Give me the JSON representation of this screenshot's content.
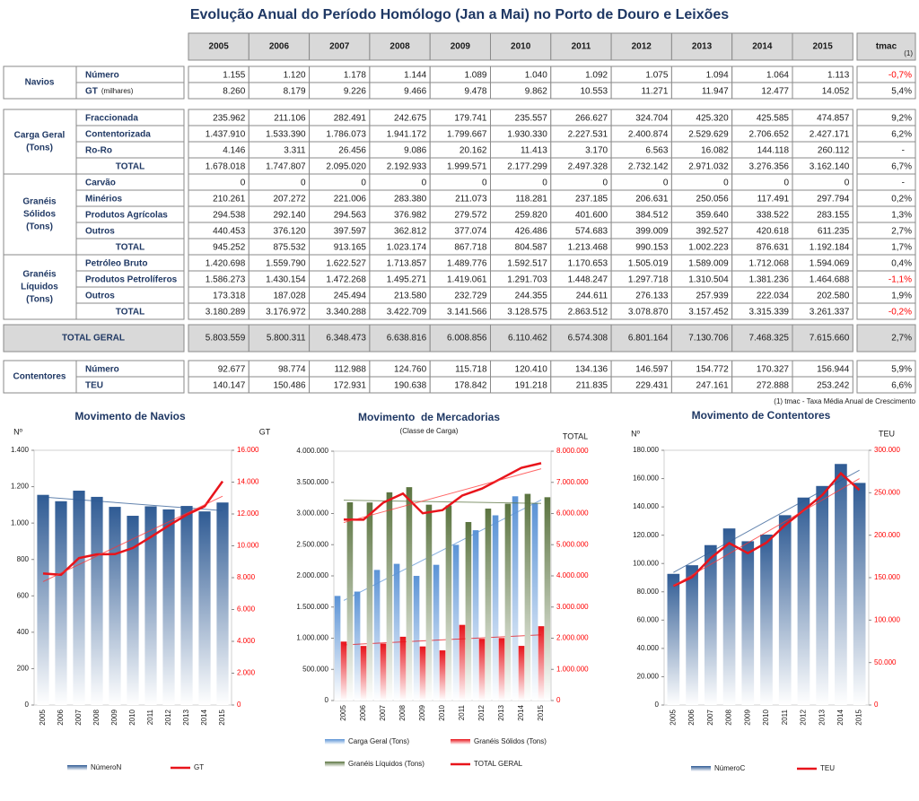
{
  "title": "Evolução Anual do Período Homólogo (Jan a Mai) no Porto de Douro e Leixões",
  "table": {
    "header": [
      "2005",
      "2006",
      "2007",
      "2008",
      "2009",
      "2010",
      "2011",
      "2012",
      "2013",
      "2014",
      "2015",
      "tmac"
    ],
    "header_note": "(1)",
    "groups": [
      {
        "label_lines": [
          "Navios"
        ],
        "rows": [
          {
            "label": "Número",
            "cells": [
              "1.155",
              "1.120",
              "1.178",
              "1.144",
              "1.089",
              "1.040",
              "1.092",
              "1.075",
              "1.094",
              "1.064",
              "1.113",
              "-0,7%"
            ]
          },
          {
            "label": "GT",
            "note": "(milhares)",
            "cells": [
              "8.260",
              "8.179",
              "9.226",
              "9.466",
              "9.478",
              "9.862",
              "10.553",
              "11.271",
              "11.947",
              "12.477",
              "14.052",
              "5,4%"
            ]
          }
        ]
      },
      {
        "label_lines": [
          "Carga Geral",
          "(Tons)"
        ],
        "rows": [
          {
            "label": "Fraccionada",
            "cells": [
              "235.962",
              "211.106",
              "282.491",
              "242.675",
              "179.741",
              "235.557",
              "266.627",
              "324.704",
              "425.320",
              "425.585",
              "474.857",
              "9,2%"
            ]
          },
          {
            "label": "Contentorizada",
            "cells": [
              "1.437.910",
              "1.533.390",
              "1.786.073",
              "1.941.172",
              "1.799.667",
              "1.930.330",
              "2.227.531",
              "2.400.874",
              "2.529.629",
              "2.706.652",
              "2.427.171",
              "6,2%"
            ]
          },
          {
            "label": "Ro-Ro",
            "cells": [
              "4.146",
              "3.311",
              "26.456",
              "9.086",
              "20.162",
              "11.413",
              "3.170",
              "6.563",
              "16.082",
              "144.118",
              "260.112",
              "-"
            ]
          },
          {
            "label": "TOTAL",
            "cells": [
              "1.678.018",
              "1.747.807",
              "2.095.020",
              "2.192.933",
              "1.999.571",
              "2.177.299",
              "2.497.328",
              "2.732.142",
              "2.971.032",
              "3.276.356",
              "3.162.140",
              "6,7%"
            ]
          }
        ]
      },
      {
        "label_lines": [
          "Granéis",
          "Sólidos",
          "(Tons)"
        ],
        "rows": [
          {
            "label": "Carvão",
            "cells": [
              "0",
              "0",
              "0",
              "0",
              "0",
              "0",
              "0",
              "0",
              "0",
              "0",
              "0",
              "-"
            ]
          },
          {
            "label": "Minérios",
            "cells": [
              "210.261",
              "207.272",
              "221.006",
              "283.380",
              "211.073",
              "118.281",
              "237.185",
              "206.631",
              "250.056",
              "117.491",
              "297.794",
              "0,2%"
            ]
          },
          {
            "label": "Produtos Agrícolas",
            "cells": [
              "294.538",
              "292.140",
              "294.563",
              "376.982",
              "279.572",
              "259.820",
              "401.600",
              "384.512",
              "359.640",
              "338.522",
              "283.155",
              "1,3%"
            ]
          },
          {
            "label": "Outros",
            "cells": [
              "440.453",
              "376.120",
              "397.597",
              "362.812",
              "377.074",
              "426.486",
              "574.683",
              "399.009",
              "392.527",
              "420.618",
              "611.235",
              "2,7%"
            ]
          },
          {
            "label": "TOTAL",
            "cells": [
              "945.252",
              "875.532",
              "913.165",
              "1.023.174",
              "867.718",
              "804.587",
              "1.213.468",
              "990.153",
              "1.002.223",
              "876.631",
              "1.192.184",
              "1,7%"
            ]
          }
        ]
      },
      {
        "label_lines": [
          "Granéis",
          "Líquidos",
          "(Tons)"
        ],
        "rows": [
          {
            "label": "Petróleo Bruto",
            "cells": [
              "1.420.698",
              "1.559.790",
              "1.622.527",
              "1.713.857",
              "1.489.776",
              "1.592.517",
              "1.170.653",
              "1.505.019",
              "1.589.009",
              "1.712.068",
              "1.594.069",
              "0,4%"
            ]
          },
          {
            "label": "Produtos Petrolíferos",
            "cells": [
              "1.586.273",
              "1.430.154",
              "1.472.268",
              "1.495.271",
              "1.419.061",
              "1.291.703",
              "1.448.247",
              "1.297.718",
              "1.310.504",
              "1.381.236",
              "1.464.688",
              "-1,1%"
            ]
          },
          {
            "label": "Outros",
            "cells": [
              "173.318",
              "187.028",
              "245.494",
              "213.580",
              "232.729",
              "244.355",
              "244.611",
              "276.133",
              "257.939",
              "222.034",
              "202.580",
              "1,9%"
            ]
          },
          {
            "label": "TOTAL",
            "cells": [
              "3.180.289",
              "3.176.972",
              "3.340.288",
              "3.422.709",
              "3.141.566",
              "3.128.575",
              "2.863.512",
              "3.078.870",
              "3.157.452",
              "3.315.339",
              "3.261.337",
              "-0,2%"
            ]
          }
        ]
      },
      {
        "label_lines": [
          "Contentores"
        ],
        "rows": [
          {
            "label": "Número",
            "cells": [
              "92.677",
              "98.774",
              "112.988",
              "124.760",
              "115.718",
              "120.410",
              "134.136",
              "146.597",
              "154.772",
              "170.327",
              "156.944",
              "5,9%"
            ]
          },
          {
            "label": "TEU",
            "cells": [
              "140.147",
              "150.486",
              "172.931",
              "190.638",
              "178.842",
              "191.218",
              "211.835",
              "229.431",
              "247.161",
              "272.888",
              "253.242",
              "6,6%"
            ]
          }
        ]
      }
    ],
    "total": {
      "label": "TOTAL GERAL",
      "cells": [
        "5.803.559",
        "5.800.311",
        "6.348.473",
        "6.638.816",
        "6.008.856",
        "6.110.462",
        "6.574.308",
        "6.801.164",
        "7.130.706",
        "7.468.325",
        "7.615.660",
        "2,7%"
      ]
    },
    "footnote": "(1) tmac - Taxa Média Anual de Crescimento"
  },
  "chart_data": [
    {
      "type": "combo",
      "title": "Movimento de Navios",
      "y_label": "Nº",
      "y2_label": "GT",
      "y2_color": "#ff0000",
      "trendlines": true,
      "categories": [
        "2005",
        "2006",
        "2007",
        "2008",
        "2009",
        "2010",
        "2011",
        "2012",
        "2013",
        "2014",
        "2015"
      ],
      "series": [
        {
          "name": "NúmeroN",
          "type": "bar",
          "color": "#2f5b94",
          "values": [
            1155,
            1120,
            1178,
            1144,
            1089,
            1040,
            1092,
            1075,
            1094,
            1064,
            1113
          ]
        },
        {
          "name": "GT",
          "type": "line",
          "axis": "y2",
          "color": "#e8141b",
          "values": [
            8260,
            8179,
            9226,
            9466,
            9478,
            9862,
            10553,
            11271,
            11947,
            12477,
            14052
          ]
        }
      ],
      "ylim": [
        0,
        1400
      ],
      "yticks": [
        0,
        200,
        400,
        600,
        800,
        {
          "value": 1000,
          "label": "1.000"
        },
        {
          "value": 1200,
          "label": "1.200"
        },
        {
          "value": 1400,
          "label": "1.400"
        }
      ],
      "y2lim": [
        0,
        16000
      ],
      "y2ticks": [
        0,
        {
          "value": 2000,
          "label": "2.000"
        },
        {
          "value": 4000,
          "label": "4.000"
        },
        {
          "value": 6000,
          "label": "6.000"
        },
        {
          "value": 8000,
          "label": "8.000"
        },
        {
          "value": 10000,
          "label": "10.000"
        },
        {
          "value": 12000,
          "label": "12.000"
        },
        {
          "value": 14000,
          "label": "14.000"
        },
        {
          "value": 16000,
          "label": "16.000"
        }
      ]
    },
    {
      "type": "combo",
      "title": "Movimento  de Mercadorias",
      "subtitle": "(Classe de Carga)",
      "y2_label": "TOTAL",
      "y2_color": "#ff0000",
      "trendlines": true,
      "categories": [
        "2005",
        "2006",
        "2007",
        "2008",
        "2009",
        "2010",
        "2011",
        "2012",
        "2013",
        "2014",
        "2015"
      ],
      "series": [
        {
          "name": "Carga Geral (Tons)",
          "type": "bar",
          "color": "#5b93d6",
          "values": [
            1678018,
            1747807,
            2095020,
            2192933,
            1999571,
            2177299,
            2497328,
            2732142,
            2971032,
            3276356,
            3162140
          ]
        },
        {
          "name": "Granéis Sólidos (Tons)",
          "type": "bar",
          "color": "#e8141b",
          "values": [
            945252,
            875532,
            913165,
            1023174,
            867718,
            804587,
            1213468,
            990153,
            1002223,
            876631,
            1192184
          ]
        },
        {
          "name": "Granéis Líquidos (Tons)",
          "type": "bar",
          "color": "#5b7440",
          "values": [
            3180289,
            3176972,
            3340288,
            3422709,
            3141566,
            3128575,
            2863512,
            3078870,
            3157452,
            3315339,
            3261337
          ]
        },
        {
          "name": "TOTAL GERAL",
          "type": "line",
          "axis": "y2",
          "color": "#e8141b",
          "values": [
            5803559,
            5800311,
            6348473,
            6638816,
            6008856,
            6110462,
            6574308,
            6801164,
            7130706,
            7468325,
            7615660
          ]
        }
      ],
      "ylim": [
        0,
        4000000
      ],
      "yticks": [
        0,
        {
          "value": 500000,
          "label": "500.000"
        },
        {
          "value": 1000000,
          "label": "1.000.000"
        },
        {
          "value": 1500000,
          "label": "1.500.000"
        },
        {
          "value": 2000000,
          "label": "2.000.000"
        },
        {
          "value": 2500000,
          "label": "2.500.000"
        },
        {
          "value": 3000000,
          "label": "3.000.000"
        },
        {
          "value": 3500000,
          "label": "3.500.000"
        },
        {
          "value": 4000000,
          "label": "4.000.000"
        }
      ],
      "y2lim": [
        0,
        8000000
      ],
      "y2ticks": [
        0,
        {
          "value": 1000000,
          "label": "1.000.000"
        },
        {
          "value": 2000000,
          "label": "2.000.000"
        },
        {
          "value": 3000000,
          "label": "3.000.000"
        },
        {
          "value": 4000000,
          "label": "4.000.000"
        },
        {
          "value": 5000000,
          "label": "5.000.000"
        },
        {
          "value": 6000000,
          "label": "6.000.000"
        },
        {
          "value": 7000000,
          "label": "7.000.000"
        },
        {
          "value": 8000000,
          "label": "8.000.000"
        }
      ]
    },
    {
      "type": "combo",
      "title": "Movimento de Contentores",
      "y_label": "Nº",
      "y2_label": "TEU",
      "y2_color": "#ff0000",
      "trendlines": true,
      "categories": [
        "2005",
        "2006",
        "2007",
        "2008",
        "2009",
        "2010",
        "2011",
        "2012",
        "2013",
        "2014",
        "2015"
      ],
      "series": [
        {
          "name": "NúmeroC",
          "type": "bar",
          "color": "#2f5b94",
          "values": [
            92677,
            98774,
            112988,
            124760,
            115718,
            120410,
            134136,
            146597,
            154772,
            170327,
            156944
          ]
        },
        {
          "name": "TEU",
          "type": "line",
          "axis": "y2",
          "color": "#e8141b",
          "values": [
            140147,
            150486,
            172931,
            190638,
            178842,
            191218,
            211835,
            229431,
            247161,
            272888,
            253242
          ]
        }
      ],
      "ylim": [
        0,
        180000
      ],
      "yticks": [
        0,
        {
          "value": 20000,
          "label": "20.000"
        },
        {
          "value": 40000,
          "label": "40.000"
        },
        {
          "value": 60000,
          "label": "60.000"
        },
        {
          "value": 80000,
          "label": "80.000"
        },
        {
          "value": 100000,
          "label": "100.000"
        },
        {
          "value": 120000,
          "label": "120.000"
        },
        {
          "value": 140000,
          "label": "140.000"
        },
        {
          "value": 160000,
          "label": "160.000"
        },
        {
          "value": 180000,
          "label": "180.000"
        }
      ],
      "y2lim": [
        0,
        300000
      ],
      "y2ticks": [
        0,
        {
          "value": 50000,
          "label": "50.000"
        },
        {
          "value": 100000,
          "label": "100.000"
        },
        {
          "value": 150000,
          "label": "150.000"
        },
        {
          "value": 200000,
          "label": "200.000"
        },
        {
          "value": 250000,
          "label": "250.000"
        },
        {
          "value": 300000,
          "label": "300.000"
        }
      ]
    }
  ]
}
